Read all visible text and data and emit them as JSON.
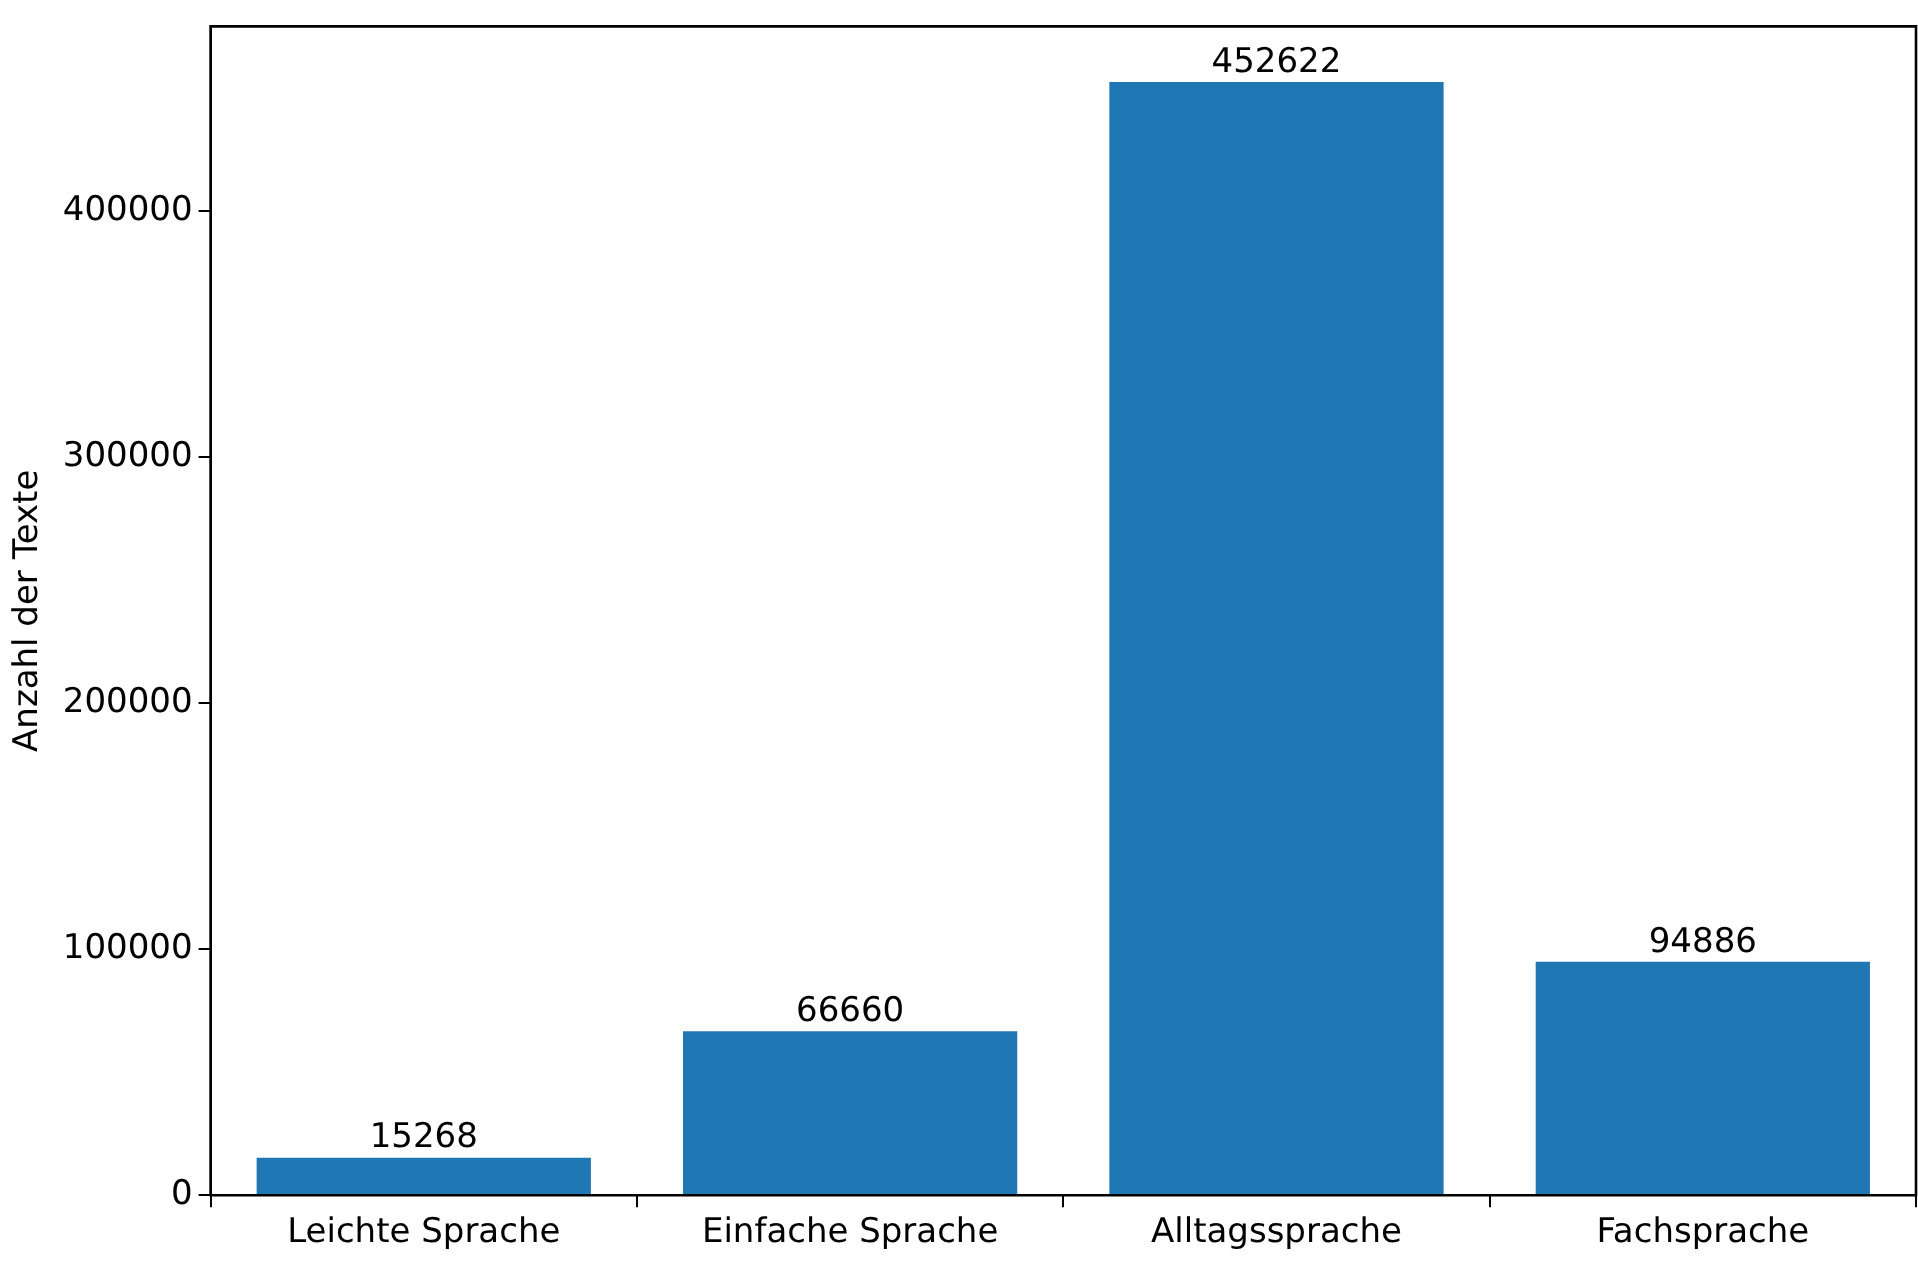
{
  "chart_data": {
    "type": "bar",
    "ylabel": "Anzahl der Texte",
    "categories": [
      "Leichte Sprache",
      "Einfache Sprache",
      "Alltagssprache",
      "Fachsprache"
    ],
    "values": [
      15268,
      66660,
      452622,
      94886
    ],
    "color": "#1f77b4",
    "ylim": [
      0,
      475253
    ],
    "yticks": [
      0,
      100000,
      200000,
      300000,
      400000
    ],
    "grid": false,
    "legend": false,
    "data_labels": true
  }
}
